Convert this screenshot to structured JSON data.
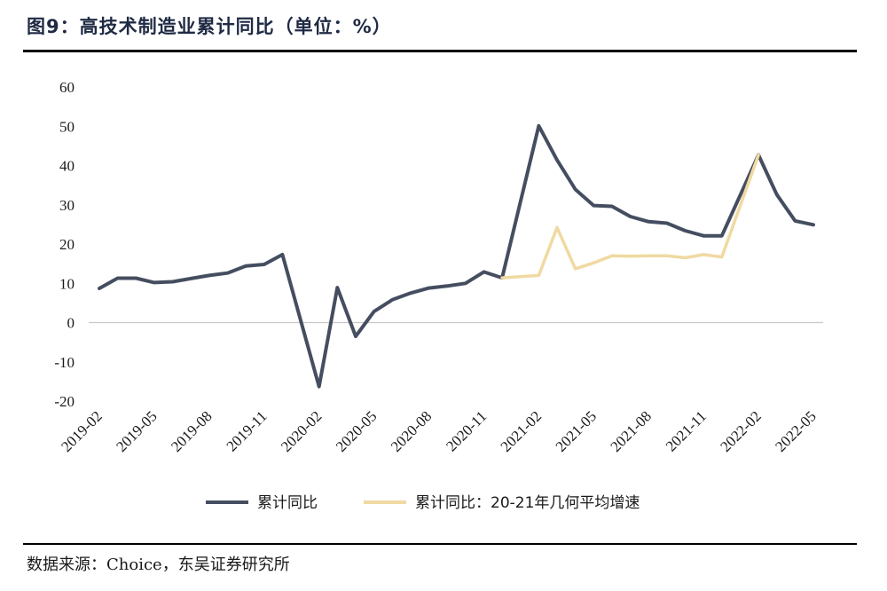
{
  "header": {
    "title": "图9：高技术制造业累计同比（单位：%）"
  },
  "footer": {
    "source": "数据来源：Choice，东吴证券研究所"
  },
  "colors": {
    "series_1": "#454e60",
    "series_2": "#f0d9a2",
    "zero_line": "#c8c8c8"
  },
  "chart_data": {
    "type": "line",
    "title": "图9：高技术制造业累计同比（单位：%）",
    "xlabel": "",
    "ylabel": "",
    "ylim": [
      -20,
      60
    ],
    "yticks": [
      60,
      50,
      40,
      30,
      20,
      10,
      0,
      -10,
      -20
    ],
    "x": [
      "2019-02",
      "2019-03",
      "2019-04",
      "2019-05",
      "2019-06",
      "2019-07",
      "2019-08",
      "2019-09",
      "2019-10",
      "2019-11",
      "2019-12",
      "2020-01",
      "2020-02",
      "2020-03",
      "2020-04",
      "2020-05",
      "2020-06",
      "2020-07",
      "2020-08",
      "2020-09",
      "2020-10",
      "2020-11",
      "2020-12",
      "2021-01",
      "2021-02",
      "2021-03",
      "2021-04",
      "2021-05",
      "2021-06",
      "2021-07",
      "2021-08",
      "2021-09",
      "2021-10",
      "2021-11",
      "2021-12",
      "2022-01",
      "2022-02",
      "2022-03",
      "2022-04",
      "2022-05"
    ],
    "xtick_labels": [
      "2019-02",
      "2019-05",
      "2019-08",
      "2019-11",
      "2020-02",
      "2020-05",
      "2020-08",
      "2020-11",
      "2021-02",
      "2021-05",
      "2021-08",
      "2021-11",
      "2022-02",
      "2022-05"
    ],
    "legend_position": "bottom",
    "grid": false,
    "series": [
      {
        "name": "累计同比",
        "values": [
          8.7,
          11.3,
          11.3,
          10.2,
          10.4,
          11.2,
          12.0,
          12.6,
          14.4,
          14.8,
          17.3,
          null,
          -16.3,
          8.9,
          -3.5,
          2.8,
          5.8,
          7.5,
          8.8,
          9.3,
          10.0,
          12.9,
          11.4,
          null,
          50.1,
          41.4,
          33.9,
          29.8,
          29.6,
          27.0,
          25.7,
          25.3,
          23.4,
          22.1,
          22.1,
          null,
          42.7,
          32.6,
          25.9,
          24.9
        ]
      },
      {
        "name": "累计同比：20-21年几何平均增速",
        "values": [
          null,
          null,
          null,
          null,
          null,
          null,
          null,
          null,
          null,
          null,
          null,
          null,
          null,
          null,
          null,
          null,
          null,
          null,
          null,
          null,
          null,
          null,
          11.4,
          null,
          12.0,
          24.2,
          13.7,
          15.2,
          17.0,
          16.9,
          17.0,
          17.0,
          16.5,
          17.3,
          16.7,
          null,
          42.7,
          null,
          null,
          null
        ]
      }
    ]
  }
}
